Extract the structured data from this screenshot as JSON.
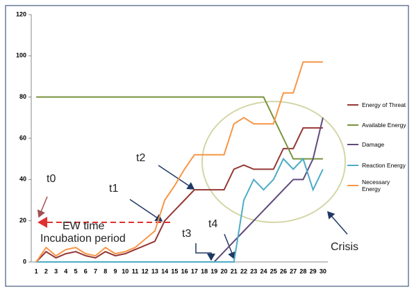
{
  "chart_data": {
    "type": "line",
    "categories": [
      "1",
      "2",
      "3",
      "4",
      "5",
      "6",
      "7",
      "8",
      "9",
      "10",
      "11",
      "12",
      "13",
      "14",
      "15",
      "16",
      "17",
      "18",
      "19",
      "20",
      "21",
      "22",
      "23",
      "24",
      "25",
      "26",
      "27",
      "28",
      "29",
      "30"
    ],
    "series": [
      {
        "name": "Energy of Threat",
        "color": "#953735",
        "values": [
          0,
          5,
          2,
          4,
          5,
          3,
          2,
          5,
          3,
          4,
          6,
          8,
          10,
          20,
          25,
          30,
          35,
          35,
          35,
          35,
          45,
          47,
          45,
          45,
          45,
          55,
          55,
          65,
          65,
          65
        ]
      },
      {
        "name": "Available Energy",
        "color": "#77933c",
        "values": [
          80,
          80,
          80,
          80,
          80,
          80,
          80,
          80,
          80,
          80,
          80,
          80,
          80,
          80,
          80,
          80,
          80,
          80,
          80,
          80,
          80,
          80,
          80,
          80,
          70,
          60,
          50,
          50,
          50,
          50
        ]
      },
      {
        "name": "Damage",
        "color": "#604a7b",
        "values": [
          0,
          0,
          0,
          0,
          0,
          0,
          0,
          0,
          0,
          0,
          0,
          0,
          0,
          0,
          0,
          0,
          0,
          0,
          0,
          5,
          10,
          15,
          20,
          25,
          30,
          35,
          40,
          40,
          50,
          70
        ]
      },
      {
        "name": "Reaction Energy",
        "color": "#4bacc6",
        "values": [
          0,
          0,
          0,
          0,
          0,
          0,
          0,
          0,
          0,
          0,
          0,
          0,
          0,
          0,
          0,
          0,
          0,
          0,
          0,
          0,
          0,
          30,
          40,
          35,
          40,
          50,
          45,
          50,
          35,
          45
        ]
      },
      {
        "name": "Necessary Energy",
        "color": "#f79646",
        "values": [
          0,
          7,
          3,
          6,
          7,
          4,
          3,
          7,
          4,
          5,
          7,
          11,
          15,
          30,
          37,
          45,
          52,
          52,
          52,
          52,
          67,
          70,
          67,
          67,
          67,
          82,
          82,
          97,
          97,
          97
        ]
      }
    ],
    "ylim": [
      0,
      120
    ],
    "yticks": [
      0,
      20,
      40,
      60,
      80,
      100,
      120
    ],
    "annotations": [
      "t0",
      "t1",
      "t2",
      "t3",
      "t4",
      "EW time",
      "Incubation period",
      "Crisis"
    ]
  }
}
